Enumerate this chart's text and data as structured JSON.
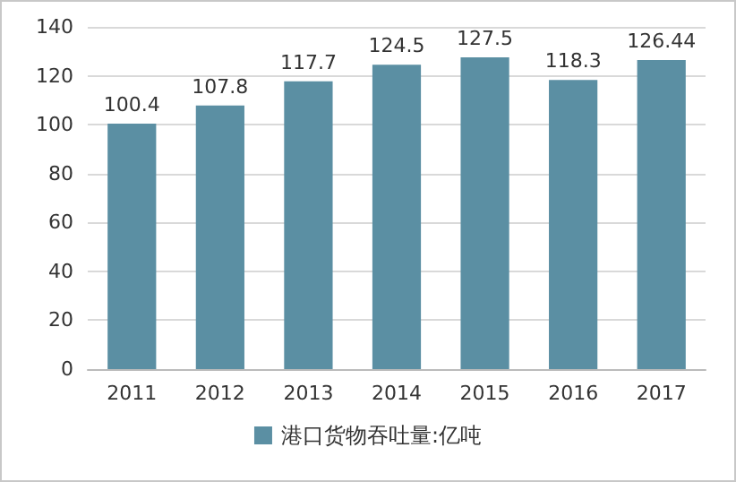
{
  "chart_data": {
    "type": "bar",
    "categories": [
      "2011",
      "2012",
      "2013",
      "2014",
      "2015",
      "2016",
      "2017"
    ],
    "series": [
      {
        "name": "港口货物吞吐量:亿吨",
        "color": "#5b8fa3",
        "values": [
          100.4,
          107.8,
          117.7,
          124.5,
          127.5,
          118.3,
          126.44
        ]
      }
    ],
    "data_labels": true,
    "ylim": [
      0,
      140
    ],
    "yticks": [
      0,
      20,
      40,
      60,
      80,
      100,
      120,
      140
    ],
    "grid": "y",
    "legend": "bottom"
  }
}
